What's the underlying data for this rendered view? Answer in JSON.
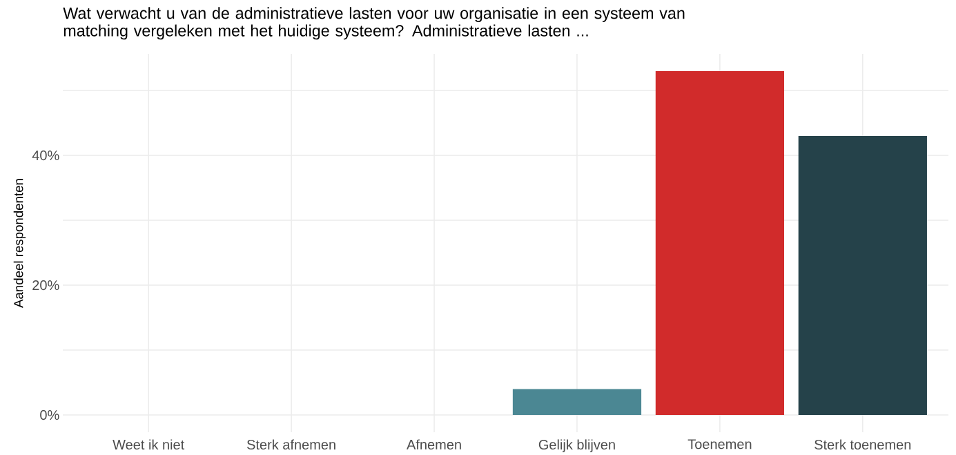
{
  "chart_data": {
    "type": "bar",
    "title": "Wat verwacht u van de administratieve lasten voor uw organisatie in een systeem van matching vergeleken met het huidige systeem? Administratieve lasten ...",
    "ylabel": "Aandeel respondenten",
    "categories": [
      "Weet ik niet",
      "Sterk afnemen",
      "Afnemen",
      "Gelijk blijven",
      "Toenemen",
      "Sterk toenemen"
    ],
    "values": [
      0,
      0,
      0,
      4,
      53,
      43
    ],
    "colors": [
      null,
      null,
      null,
      "#4b8793",
      "#d12b2b",
      "#25424a"
    ],
    "ylim": [
      -2.65,
      55.65
    ],
    "yticks": [
      {
        "value": 0,
        "label": "0%"
      },
      {
        "value": 10,
        "label": null
      },
      {
        "value": 20,
        "label": "20%"
      },
      {
        "value": 30,
        "label": null
      },
      {
        "value": 40,
        "label": "40%"
      },
      {
        "value": 50,
        "label": null
      }
    ],
    "grid": true
  }
}
